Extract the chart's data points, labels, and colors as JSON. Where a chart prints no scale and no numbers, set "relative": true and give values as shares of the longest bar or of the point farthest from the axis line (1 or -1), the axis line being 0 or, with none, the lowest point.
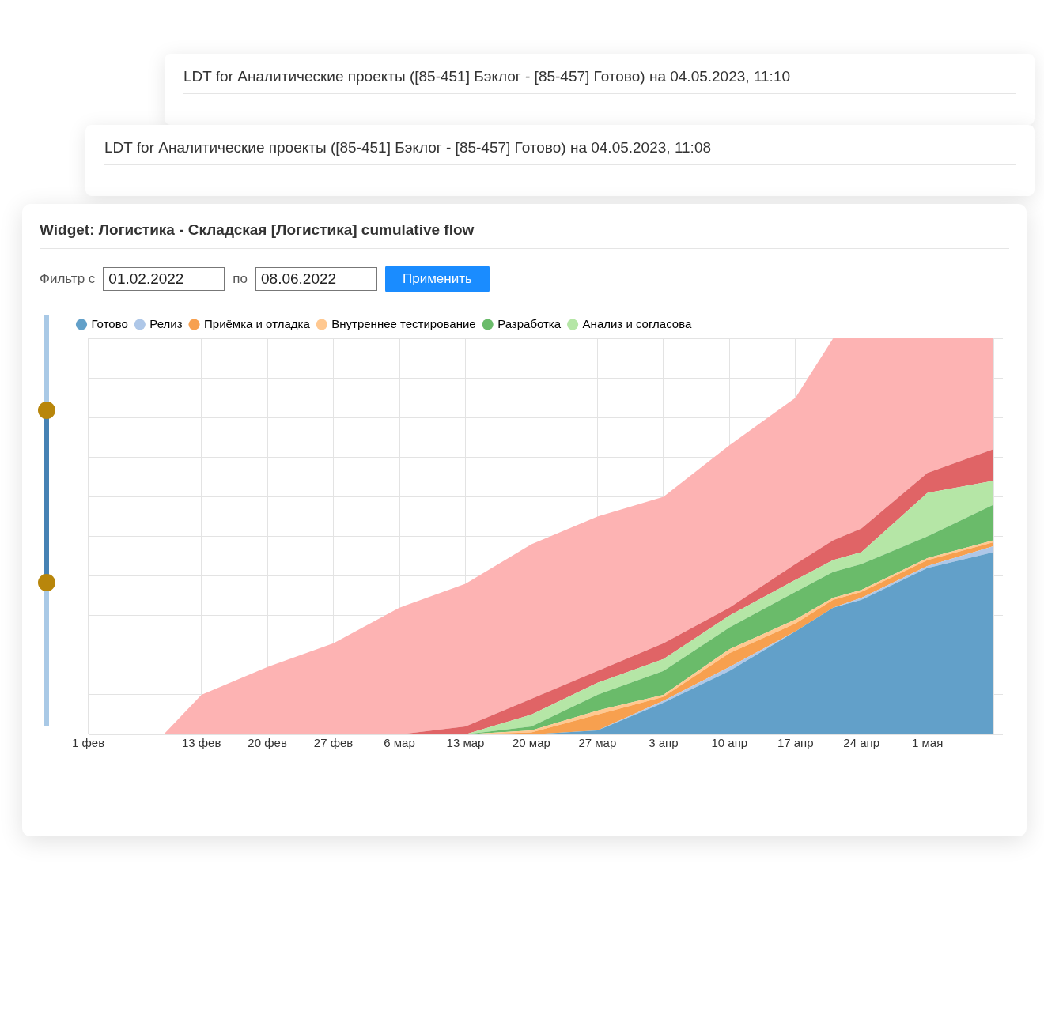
{
  "chart_data": {
    "type": "area",
    "title": "Widget: Логистика - Складская [Логистика] cumulative flow",
    "annotations": [
      "LDT for Аналитические проекты ([85-451] Бэклог - [85-457] Готово) на 04.05.2023, 11:10",
      "LDT for Аналитические проекты ([85-451] Бэклог - [85-457] Готово) на 04.05.2023, 11:08",
      "Фильтр с",
      "01.02.2022",
      "по",
      "08.06.2022",
      "Применить"
    ],
    "x": [
      "2022-02-09",
      "2022-02-13",
      "2022-02-20",
      "2022-02-27",
      "2022-03-06",
      "2022-03-13",
      "2022-03-20",
      "2022-03-27",
      "2022-04-03",
      "2022-04-10",
      "2022-04-17",
      "2022-04-21",
      "2022-04-24",
      "2022-05-01",
      "2022-05-08"
    ],
    "xlim": [
      "2022-02-01",
      "2022-05-09"
    ],
    "xticks": [
      {
        "value": "2022-02-01",
        "label": "1 фев"
      },
      {
        "value": "2022-02-13",
        "label": "13 фев"
      },
      {
        "value": "2022-02-20",
        "label": "20 фев"
      },
      {
        "value": "2022-02-27",
        "label": "27 фев"
      },
      {
        "value": "2022-03-06",
        "label": "6 мар"
      },
      {
        "value": "2022-03-13",
        "label": "13 мар"
      },
      {
        "value": "2022-03-20",
        "label": "20 мар"
      },
      {
        "value": "2022-03-27",
        "label": "27 мар"
      },
      {
        "value": "2022-04-03",
        "label": "3 апр"
      },
      {
        "value": "2022-04-10",
        "label": "10 апр"
      },
      {
        "value": "2022-04-17",
        "label": "17 апр"
      },
      {
        "value": "2022-04-24",
        "label": "24 апр"
      },
      {
        "value": "2022-05-01",
        "label": "1 мая"
      },
      {
        "value": "2022-05-08",
        "label": null
      }
    ],
    "relative": true,
    "stacked": true,
    "grid": true,
    "legend": "top",
    "series": [
      {
        "name": "Готово",
        "color": "#62a0c9",
        "values": [
          0,
          0,
          0,
          0,
          0,
          0,
          0,
          0.01,
          0.08,
          0.16,
          0.26,
          0.32,
          0.34,
          0.42,
          0.46
        ]
      },
      {
        "name": "Релиз",
        "color": "#aec7e8",
        "values": [
          0,
          0,
          0,
          0,
          0,
          0,
          0,
          0,
          0.005,
          0.01,
          0,
          0,
          0.005,
          0.005,
          0.015
        ]
      },
      {
        "name": "Приёмка и отладка",
        "color": "#f7a04f",
        "values": [
          0,
          0,
          0,
          0,
          0,
          0,
          0.005,
          0.04,
          0.01,
          0.035,
          0.02,
          0.02,
          0.015,
          0.015,
          0.01
        ]
      },
      {
        "name": "Внутреннее тестирование",
        "color": "#ffc890",
        "values": [
          0,
          0,
          0,
          0,
          0,
          0,
          0.005,
          0.01,
          0.005,
          0.01,
          0.01,
          0.005,
          0.005,
          0.005,
          0.005
        ]
      },
      {
        "name": "Разработка",
        "color": "#6abb6a",
        "values": [
          0,
          0,
          0,
          0,
          0,
          0,
          0.01,
          0.04,
          0.06,
          0.055,
          0.07,
          0.065,
          0.065,
          0.055,
          0.09
        ]
      },
      {
        "name": "Анализ и согласова",
        "color": "#b5e6a6",
        "values": [
          0,
          0,
          0,
          0,
          0,
          0,
          0.03,
          0.03,
          0.03,
          0.03,
          0.03,
          0.03,
          0.03,
          0.11,
          0.06
        ]
      },
      {
        "color": "#e06466",
        "values": [
          0,
          0,
          0,
          0,
          0,
          0.02,
          0.04,
          0.03,
          0.04,
          0.02,
          0.04,
          0.05,
          0.06,
          0.05,
          0.08
        ]
      },
      {
        "color": "#fdb3b3",
        "values": [
          0,
          0.1,
          0.17,
          0.23,
          0.32,
          0.36,
          0.39,
          0.39,
          0.37,
          0.41,
          0.42,
          0.51,
          0.48,
          0.34,
          0.28
        ]
      }
    ]
  }
}
